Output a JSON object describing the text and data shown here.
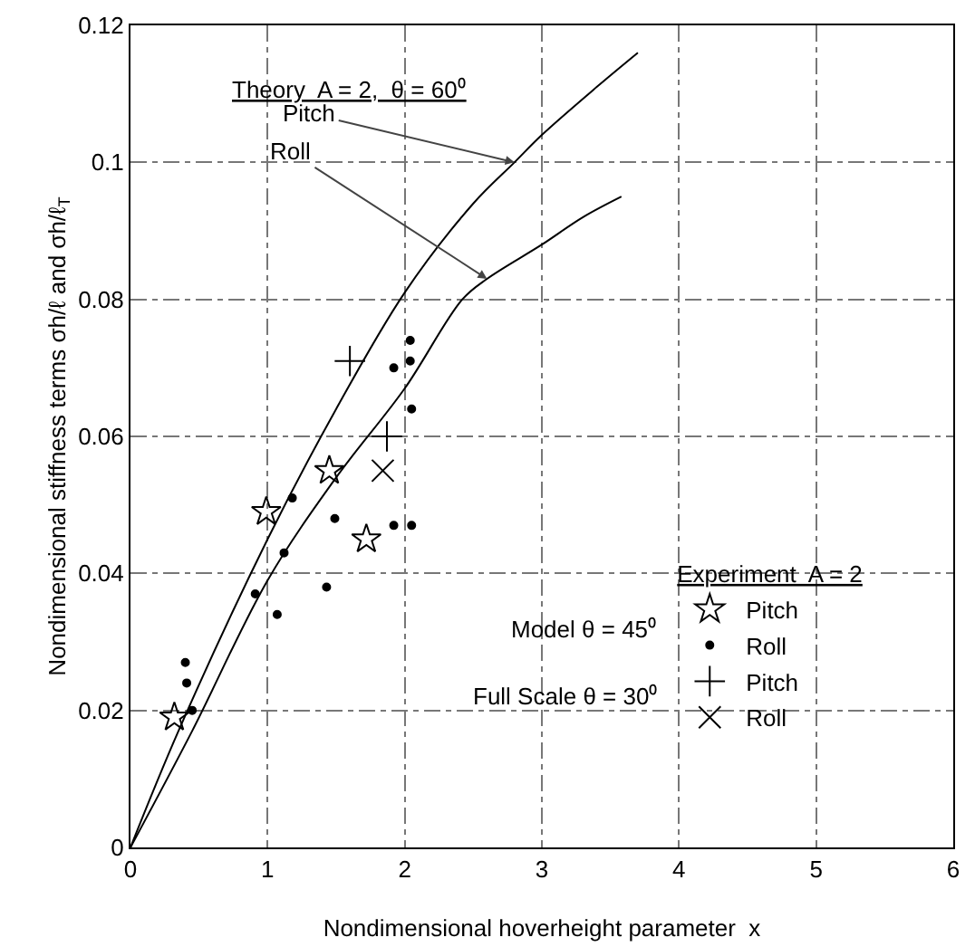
{
  "chart_data": {
    "type": "scatter",
    "xlabel": "Nondimensional hoverheight parameter  x",
    "ylabel": "Nondimensional stiffness terms σh/ℓ and σh/ℓ$_{T}$",
    "legend_title": "Experiment  A = 2",
    "xlim": [
      0,
      6
    ],
    "xticks": [
      0,
      1,
      2,
      3,
      4,
      5,
      6
    ],
    "ylim": [
      0,
      0.12
    ],
    "yticks": [
      0,
      0.02,
      0.04,
      0.06,
      0.08,
      0.1,
      0.12
    ],
    "grid": true,
    "legend": "bottom right",
    "annotations": [
      "Theory  A = 2,  θ = 60⁰",
      "Model θ = 45⁰",
      "Full Scale θ = 30⁰",
      {
        "text": "Pitch",
        "x": 2.8,
        "y": 0.1
      },
      {
        "text": "Roll",
        "x": 2.6,
        "y": 0.083
      }
    ],
    "series": [
      {
        "type": "line",
        "color": "#000000",
        "marker": "none",
        "x": [
          0,
          0.35,
          1,
          1.5,
          2,
          2.5,
          2.8,
          3,
          3.4,
          3.7
        ],
        "values": [
          0,
          0.017,
          0.045,
          0.064,
          0.081,
          0.094,
          0.1,
          0.104,
          0.111,
          0.116
        ]
      },
      {
        "type": "line",
        "color": "#000000",
        "marker": "none",
        "x": [
          0,
          0.45,
          1,
          1.5,
          2,
          2.42,
          2.6,
          3,
          3.3,
          3.58
        ],
        "values": [
          0,
          0.017,
          0.039,
          0.054,
          0.067,
          0.08,
          0.083,
          0.088,
          0.092,
          0.095
        ]
      },
      {
        "name": "Pitch",
        "color": "#000000",
        "marker": "star",
        "x": [
          0.32,
          0.99,
          1.45,
          1.72
        ],
        "values": [
          0.019,
          0.049,
          0.055,
          0.045
        ]
      },
      {
        "name": "Roll",
        "color": "#000000",
        "marker": "circle",
        "x": [
          0.4,
          0.41,
          0.45,
          0.91,
          1.07,
          1.12,
          1.18,
          1.43,
          1.49,
          1.92,
          2.05,
          1.92,
          2.04,
          2.04,
          2.05
        ],
        "values": [
          0.027,
          0.024,
          0.02,
          0.037,
          0.034,
          0.043,
          0.051,
          0.038,
          0.048,
          0.047,
          0.047,
          0.07,
          0.074,
          0.071,
          0.064
        ]
      },
      {
        "name": "Pitch",
        "color": "#000000",
        "marker": "cross",
        "x": [
          1.6,
          1.87
        ],
        "values": [
          0.071,
          0.06
        ]
      },
      {
        "name": "Roll",
        "color": "#000000",
        "marker": "x",
        "x": [
          1.84
        ],
        "values": [
          0.055
        ]
      }
    ]
  }
}
